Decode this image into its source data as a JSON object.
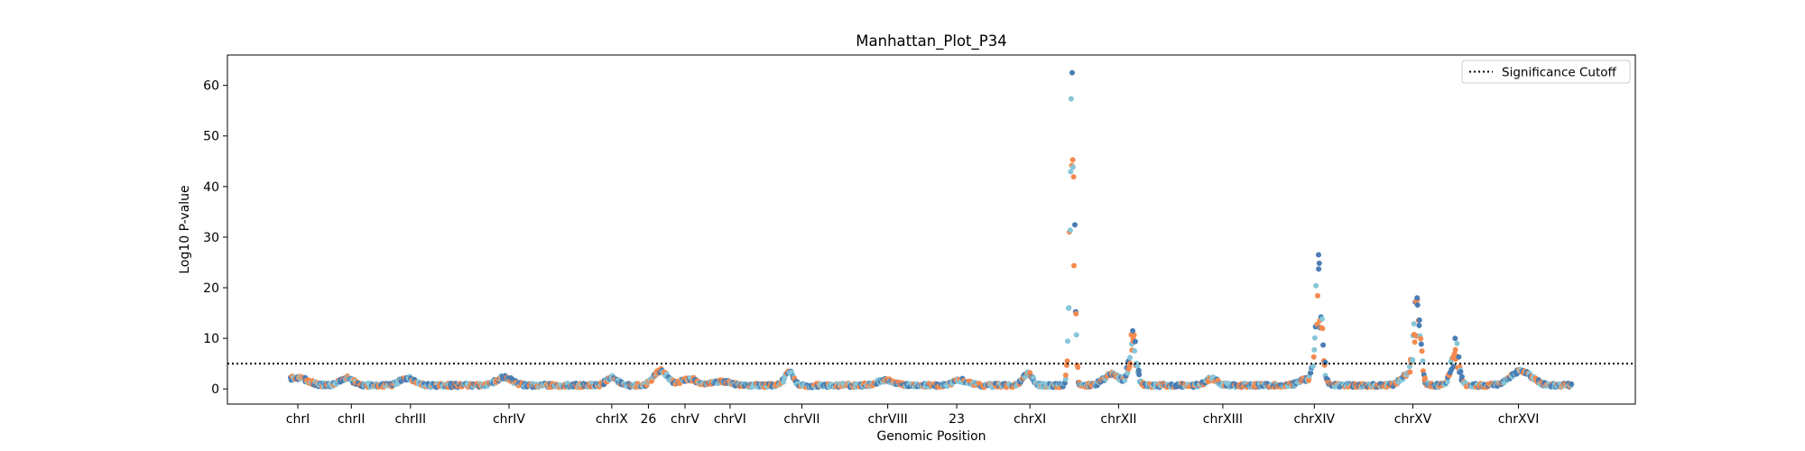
{
  "chart_data": {
    "type": "scatter",
    "title": "Manhattan_Plot_P34",
    "xlabel": "Genomic Position",
    "ylabel": "Log10 P-value",
    "ylim": [
      -3,
      66
    ],
    "yticks": [
      0,
      10,
      20,
      30,
      40,
      50,
      60
    ],
    "xlim": [
      0,
      1000
    ],
    "xticks": [
      {
        "label": "chrI",
        "pos": 50
      },
      {
        "label": "chrII",
        "pos": 88
      },
      {
        "label": "chrIII",
        "pos": 130
      },
      {
        "label": "chrIV",
        "pos": 200
      },
      {
        "label": "chrIX",
        "pos": 273
      },
      {
        "label": "26",
        "pos": 299
      },
      {
        "label": "chrV",
        "pos": 325
      },
      {
        "label": "chrVI",
        "pos": 357
      },
      {
        "label": "chrVII",
        "pos": 408
      },
      {
        "label": "chrVIII",
        "pos": 469
      },
      {
        "label": "23",
        "pos": 518
      },
      {
        "label": "chrXI",
        "pos": 570
      },
      {
        "label": "chrXII",
        "pos": 633
      },
      {
        "label": "chrXIII",
        "pos": 707
      },
      {
        "label": "chrXIV",
        "pos": 772
      },
      {
        "label": "chrXV",
        "pos": 842
      },
      {
        "label": "chrXVI",
        "pos": 917
      }
    ],
    "threshold": {
      "y": 5,
      "label": "Significance Cutoff",
      "style": "dotted",
      "color": "#000000"
    },
    "legend": {
      "position": "top-right",
      "entries": [
        "Significance Cutoff"
      ]
    },
    "series_colors": [
      "#f58a4f",
      "#4a7db4",
      "#86c6d8"
    ],
    "baseline": {
      "x_range": [
        45,
        955
      ],
      "typical_y": [
        0,
        3
      ]
    },
    "peaks": [
      {
        "x": 600,
        "y_max": 62.5
      },
      {
        "x": 643,
        "y_max": 11.5
      },
      {
        "x": 775,
        "y_max": 26.5
      },
      {
        "x": 845,
        "y_max": 18
      },
      {
        "x": 872,
        "y_max": 10
      }
    ],
    "grid": false
  }
}
